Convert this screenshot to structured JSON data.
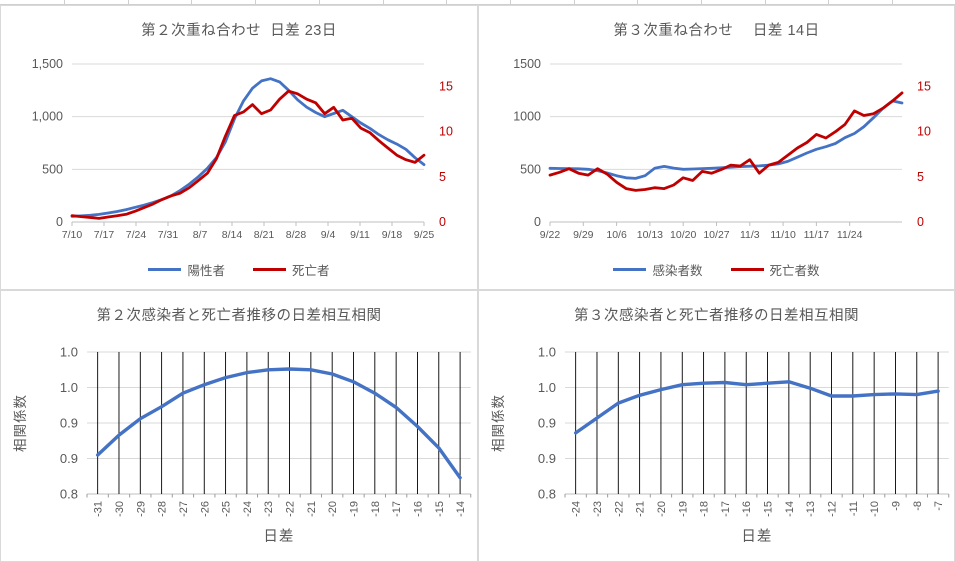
{
  "colors": {
    "series_blue": "#4472C4",
    "series_red": "#C00000",
    "axis_text": "#595959",
    "right_axis_text": "#C00000",
    "grid_light": "#D9D9D9",
    "axis_line": "#BFBFBF",
    "grid_black": "#000000"
  },
  "chart_data": [
    {
      "type": "line",
      "variant": "dual_axis",
      "title": "第２次重ね合わせ  日差 23日",
      "legend_position": "bottom",
      "x_ticks": {
        "labels": [
          "7/10",
          "7/17",
          "7/24",
          "7/31",
          "8/7",
          "8/14",
          "8/21",
          "8/28",
          "9/4",
          "9/11",
          "9/18",
          "9/25"
        ],
        "days": [
          0,
          7,
          14,
          21,
          28,
          35,
          42,
          49,
          56,
          63,
          70,
          77
        ],
        "total_days": 77
      },
      "left_axis": {
        "ticks": [
          "0",
          "500",
          "1,000",
          "1,500"
        ],
        "tick_values": [
          0,
          500,
          1000,
          1500
        ],
        "max": 1500
      },
      "right_axis": {
        "ticks": [
          "0",
          "5",
          "10",
          "15"
        ],
        "tick_values": [
          0,
          5,
          10,
          15
        ],
        "max": 17.5
      },
      "series": [
        {
          "name": "陽性者",
          "axis": "left",
          "color": "#4472C4",
          "values": [
            54,
            58,
            64,
            72,
            85,
            100,
            118,
            140,
            160,
            185,
            215,
            250,
            300,
            360,
            430,
            510,
            610,
            760,
            980,
            1150,
            1270,
            1340,
            1360,
            1330,
            1250,
            1160,
            1090,
            1040,
            1000,
            1030,
            1060,
            1000,
            940,
            890,
            830,
            780,
            740,
            690,
            610,
            545
          ]
        },
        {
          "name": "死亡者",
          "axis": "right",
          "color": "#C00000",
          "values": [
            0.7,
            0.6,
            0.5,
            0.4,
            0.55,
            0.7,
            0.85,
            1.2,
            1.6,
            2.0,
            2.5,
            2.9,
            3.2,
            3.8,
            4.6,
            5.4,
            7.0,
            9.5,
            11.8,
            12.2,
            13.0,
            12.0,
            12.4,
            13.6,
            14.5,
            14.2,
            13.6,
            13.2,
            12.0,
            12.7,
            11.3,
            11.5,
            10.4,
            9.9,
            9.0,
            8.2,
            7.4,
            6.9,
            6.6,
            7.4
          ]
        }
      ]
    },
    {
      "type": "line",
      "variant": "dual_axis",
      "title": "第３次重ね合わせ　 日差 14日",
      "legend_position": "bottom",
      "x_ticks": {
        "labels": [
          "9/22",
          "9/29",
          "10/6",
          "10/13",
          "10/20",
          "10/27",
          "11/3",
          "11/10",
          "11/17",
          "11/24"
        ],
        "days": [
          0,
          7,
          14,
          21,
          28,
          35,
          42,
          49,
          56,
          63
        ],
        "total_days": 74
      },
      "left_axis": {
        "ticks": [
          "0",
          "500",
          "1000",
          "1500"
        ],
        "tick_values": [
          0,
          500,
          1000,
          1500
        ],
        "max": 1500
      },
      "right_axis": {
        "ticks": [
          "0",
          "5",
          "10",
          "15"
        ],
        "tick_values": [
          0,
          5,
          10,
          15
        ],
        "max": 17.5
      },
      "series": [
        {
          "name": "感染者数",
          "axis": "left",
          "color": "#4472C4",
          "values": [
            510,
            508,
            506,
            505,
            500,
            488,
            465,
            440,
            420,
            414,
            440,
            510,
            528,
            512,
            500,
            503,
            507,
            510,
            515,
            520,
            526,
            530,
            533,
            540,
            552,
            575,
            615,
            655,
            690,
            715,
            745,
            800,
            840,
            905,
            990,
            1080,
            1150,
            1130
          ]
        },
        {
          "name": "死亡者数",
          "axis": "right",
          "color": "#C00000",
          "values": [
            5.2,
            5.5,
            5.9,
            5.4,
            5.2,
            5.9,
            5.3,
            4.4,
            3.7,
            3.5,
            3.6,
            3.8,
            3.7,
            4.1,
            4.9,
            4.6,
            5.6,
            5.4,
            5.8,
            6.3,
            6.2,
            6.9,
            5.4,
            6.3,
            6.6,
            7.4,
            8.2,
            8.8,
            9.7,
            9.3,
            10.0,
            10.8,
            12.3,
            11.8,
            12.0,
            12.6,
            13.4,
            14.3
          ]
        }
      ]
    },
    {
      "type": "line",
      "variant": "correlation",
      "title": "第２次感染者と死亡者推移の日差相互相関",
      "xlabel": "日差",
      "ylabel": "相関係数",
      "categories": [
        "-31",
        "-30",
        "-29",
        "-28",
        "-27",
        "-26",
        "-25",
        "-24",
        "-23",
        "-22",
        "-21",
        "-20",
        "-19",
        "-18",
        "-17",
        "-16",
        "-15",
        "-14"
      ],
      "values": [
        0.855,
        0.883,
        0.906,
        0.923,
        0.942,
        0.954,
        0.964,
        0.971,
        0.975,
        0.976,
        0.975,
        0.969,
        0.958,
        0.942,
        0.922,
        0.895,
        0.865,
        0.823
      ],
      "ylim": [
        0.8,
        1.0
      ],
      "y_tick_labels": [
        "0.8",
        "0.9",
        "0.9",
        "1.0",
        "1.0"
      ],
      "grid": {
        "vertical": "black line at every category",
        "horizontal": "light gray every 0.05"
      }
    },
    {
      "type": "line",
      "variant": "correlation",
      "title": "第３次感染者と死亡者推移の日差相互相関",
      "xlabel": "日差",
      "ylabel": "相関係数",
      "categories": [
        "-24",
        "-23",
        "-22",
        "-21",
        "-20",
        "-19",
        "-18",
        "-17",
        "-16",
        "-15",
        "-14",
        "-13",
        "-12",
        "-11",
        "-10",
        "-9",
        "-8",
        "-7"
      ],
      "values": [
        0.886,
        0.907,
        0.928,
        0.939,
        0.947,
        0.954,
        0.956,
        0.957,
        0.954,
        0.956,
        0.958,
        0.949,
        0.938,
        0.938,
        0.94,
        0.941,
        0.94,
        0.945
      ],
      "ylim": [
        0.8,
        1.0
      ],
      "y_tick_labels": [
        "0.8",
        "0.9",
        "0.9",
        "1.0",
        "1.0"
      ],
      "grid": {
        "vertical": "black line at every category",
        "horizontal": "light gray every 0.05"
      }
    }
  ]
}
